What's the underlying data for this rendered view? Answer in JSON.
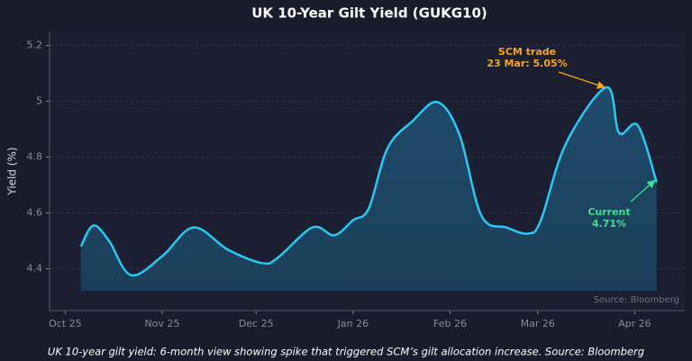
{
  "chart_data": {
    "type": "line",
    "title": "UK 10-Year Gilt Yield (GUKG10)",
    "y_label": "Yield (%)",
    "caption": "UK 10-year gilt yield: 6-month view showing spike that triggered SCM’s gilt allocation increase. Source: Bloomberg",
    "source": "Source: Bloomberg",
    "xlim": [
      "2025-09-26",
      "2026-04-17"
    ],
    "xticks": [
      {
        "value": "2025-10-01",
        "label": "Oct 25"
      },
      {
        "value": "2025-11-01",
        "label": "Nov 25"
      },
      {
        "value": "2025-12-01",
        "label": "Dec 25"
      },
      {
        "value": "2026-01-01",
        "label": "Jan 26"
      },
      {
        "value": "2026-02-01",
        "label": "Feb 26"
      },
      {
        "value": "2026-03-01",
        "label": "Mar 26"
      },
      {
        "value": "2026-04-01",
        "label": "Apr 26"
      }
    ],
    "ylim": [
      4.25,
      5.25
    ],
    "yticks": [
      4.4,
      4.6,
      4.8,
      5.0,
      5.2
    ],
    "grid": true,
    "series": [
      {
        "name": "GUKG10",
        "color": "#29c8f5",
        "x": [
          "2025-10-06",
          "2025-10-10",
          "2025-10-15",
          "2025-10-22",
          "2025-11-01",
          "2025-11-11",
          "2025-11-22",
          "2025-12-03",
          "2025-12-08",
          "2025-12-19",
          "2025-12-26",
          "2026-01-01",
          "2026-01-06",
          "2026-01-12",
          "2026-01-20",
          "2026-01-28",
          "2026-02-04",
          "2026-02-11",
          "2026-02-19",
          "2026-02-26",
          "2026-03-02",
          "2026-03-10",
          "2026-03-23",
          "2026-03-27",
          "2026-04-02",
          "2026-04-08"
        ],
        "values": [
          4.48,
          4.555,
          4.5,
          4.377,
          4.445,
          4.548,
          4.468,
          4.42,
          4.44,
          4.548,
          4.52,
          4.574,
          4.616,
          4.832,
          4.929,
          4.997,
          4.88,
          4.59,
          4.548,
          4.526,
          4.574,
          4.848,
          5.05,
          4.887,
          4.913,
          4.71
        ]
      }
    ],
    "annotations": [
      {
        "lines": [
          "SCM trade",
          "23 Mar: 5.05%"
        ],
        "color": "#f5a623"
      },
      {
        "lines": [
          "Current",
          "4.71%"
        ],
        "color": "#3ee08a"
      }
    ]
  }
}
